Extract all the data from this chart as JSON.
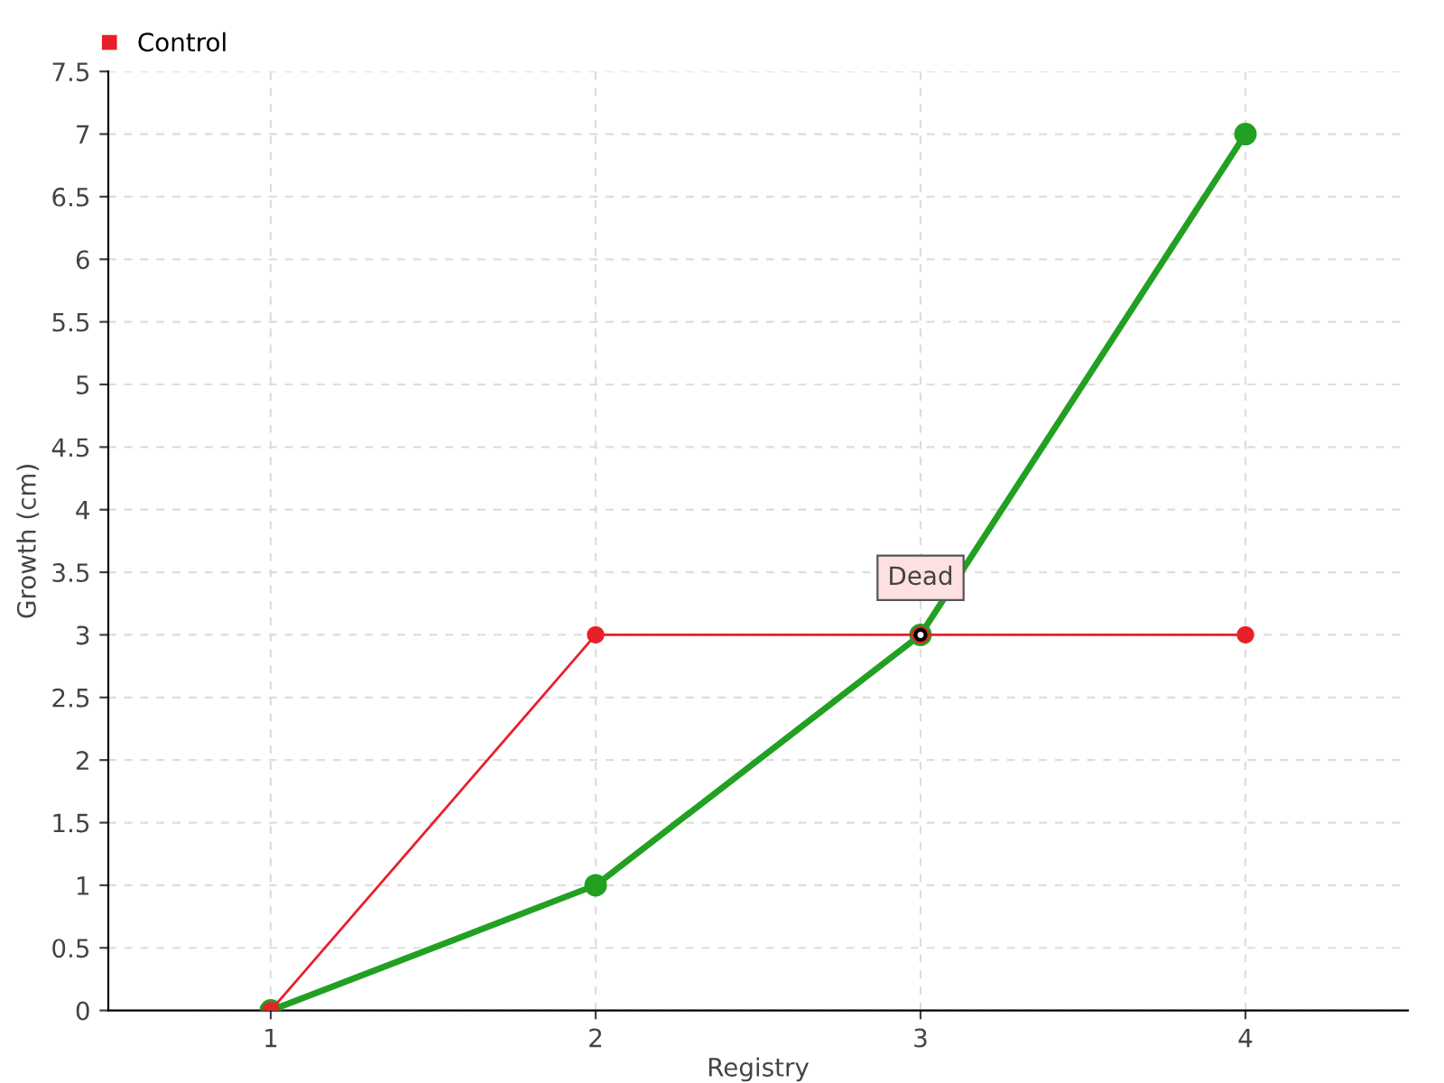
{
  "chart_data": {
    "type": "line",
    "xlabel": "Registry",
    "ylabel": "Growth (cm)",
    "x": [
      1,
      2,
      3,
      4
    ],
    "series": [
      {
        "color": "#22a022",
        "values": [
          0,
          1,
          3,
          7
        ]
      },
      {
        "name": "Control",
        "color": "#e8202a",
        "values": [
          0,
          3,
          3,
          3
        ]
      }
    ],
    "xlim": [
      0.5,
      4.5
    ],
    "xticks": [
      1,
      2,
      3,
      4
    ],
    "ylim": [
      0,
      7.5
    ],
    "yticks": [
      0,
      0.5,
      1,
      1.5,
      2,
      2.5,
      3,
      3.5,
      4,
      4.5,
      5,
      5.5,
      6,
      6.5,
      7,
      7.5
    ],
    "annotations": [
      {
        "text": "Dead",
        "x": 3,
        "y": 3
      }
    ],
    "grid": true,
    "legend": "top left",
    "marker": "circle"
  }
}
